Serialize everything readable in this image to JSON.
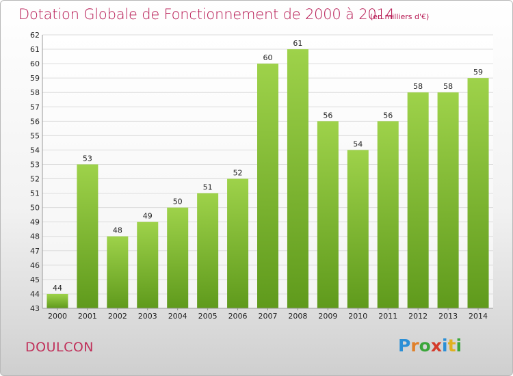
{
  "header": {
    "title": "Dotation Globale de Fonctionnement de 2000 à 2014",
    "subtitle": "(en milliers d'€)"
  },
  "footer": {
    "commune": "DOULCON",
    "logo_letters": [
      "P",
      "r",
      "o",
      "x",
      "i",
      "t",
      "i"
    ],
    "logo_colors": [
      "#2b8fd6",
      "#e0802a",
      "#3aa63a",
      "#d43a2a",
      "#2b8fd6",
      "#e0b020",
      "#3aa63a"
    ]
  },
  "chart_data": {
    "type": "bar",
    "title": "Dotation Globale de Fonctionnement de 2000 à 2014",
    "subtitle": "(en milliers d'€)",
    "categories": [
      "2000",
      "2001",
      "2002",
      "2003",
      "2004",
      "2005",
      "2006",
      "2007",
      "2008",
      "2009",
      "2010",
      "2011",
      "2012",
      "2013",
      "2014"
    ],
    "values": [
      44,
      53,
      48,
      49,
      50,
      51,
      52,
      60,
      61,
      56,
      54,
      56,
      58,
      58,
      59
    ],
    "ylim": [
      43,
      62
    ],
    "yticks": [
      "43",
      "44",
      "45",
      "46",
      "47",
      "48",
      "49",
      "50",
      "51",
      "52",
      "53",
      "54",
      "55",
      "56",
      "57",
      "58",
      "59",
      "60",
      "61",
      "62"
    ],
    "grid": true,
    "bar_color_top": "#9ed24a",
    "bar_color_bottom": "#5f9a1c"
  }
}
